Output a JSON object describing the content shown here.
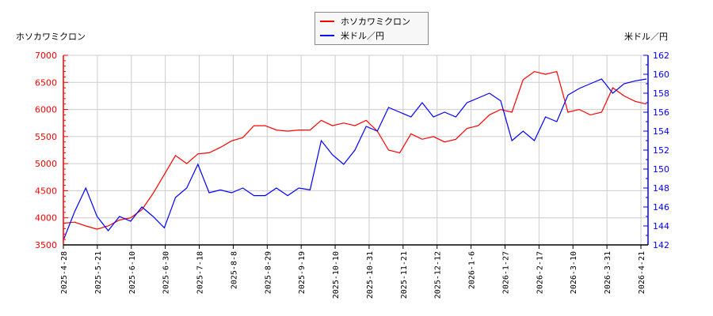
{
  "chart_data": {
    "type": "line",
    "title": "",
    "legend": {
      "position": "top-center",
      "entries": [
        {
          "label": "ホソカワミクロン",
          "color": "#ff0000"
        },
        {
          "label": "米ドル／円",
          "color": "#0000ff"
        }
      ]
    },
    "left_axis": {
      "label": "ホソカワミクロン",
      "color": "#ff0000",
      "ylim": [
        3500,
        7000
      ],
      "ticks": [
        "7000",
        "6500",
        "6000",
        "5500",
        "5000",
        "4500",
        "4000",
        "3500"
      ]
    },
    "right_axis": {
      "label": "米ドル／円",
      "color": "#0000ff",
      "ylim": [
        142,
        162
      ],
      "ticks": [
        "162",
        "160",
        "158",
        "156",
        "154",
        "152",
        "150",
        "148",
        "146",
        "144",
        "142"
      ]
    },
    "x_tick_labels": [
      "2025-4-28",
      "2025-5-21",
      "2025-6-10",
      "2025-6-30",
      "2025-7-18",
      "2025-8-8",
      "2025-8-29",
      "2025-9-19",
      "2025-10-10",
      "2025-10-31",
      "2025-11-21",
      "2025-12-12",
      "2026-1-6",
      "2026-1-27",
      "2026-2-17",
      "2026-3-10",
      "2026-3-31",
      "2026-4-21"
    ],
    "grid": true,
    "series": [
      {
        "name": "ホソカワミクロン",
        "axis": "left",
        "color": "#ff0000",
        "x": [
          "2025-4-28",
          "2025-5-7",
          "2025-5-14",
          "2025-5-21",
          "2025-5-28",
          "2025-6-3",
          "2025-6-10",
          "2025-6-17",
          "2025-6-24",
          "2025-6-30",
          "2025-7-4",
          "2025-7-11",
          "2025-7-18",
          "2025-7-25",
          "2025-8-1",
          "2025-8-8",
          "2025-8-15",
          "2025-8-22",
          "2025-8-29",
          "2025-9-5",
          "2025-9-12",
          "2025-9-19",
          "2025-9-26",
          "2025-10-3",
          "2025-10-10",
          "2025-10-17",
          "2025-10-24",
          "2025-10-31",
          "2025-11-7",
          "2025-11-14",
          "2025-11-21",
          "2025-11-28",
          "2025-12-5",
          "2025-12-12",
          "2025-12-19",
          "2025-12-26",
          "2026-1-6",
          "2026-1-13",
          "2026-1-20",
          "2026-1-27",
          "2026-2-3",
          "2026-2-10",
          "2026-2-17",
          "2026-2-24",
          "2026-3-3",
          "2026-3-10",
          "2026-3-17",
          "2026-3-24",
          "2026-3-31",
          "2026-4-7",
          "2026-4-14",
          "2026-4-21",
          "2026-4-24"
        ],
        "values": [
          3900,
          3920,
          3850,
          3790,
          3850,
          3960,
          4000,
          4150,
          4450,
          4800,
          5150,
          5000,
          5180,
          5200,
          5300,
          5420,
          5480,
          5700,
          5700,
          5620,
          5600,
          5620,
          5620,
          5800,
          5700,
          5750,
          5700,
          5800,
          5600,
          5250,
          5200,
          5550,
          5450,
          5500,
          5400,
          5450,
          5650,
          5700,
          5900,
          6000,
          5950,
          6550,
          6700,
          6650,
          6700,
          5950,
          6000,
          5900,
          5950,
          6400,
          6250,
          6150,
          6100
        ]
      },
      {
        "name": "米ドル／円",
        "axis": "right",
        "color": "#0000ff",
        "x": [
          "2025-4-28",
          "2025-5-7",
          "2025-5-14",
          "2025-5-21",
          "2025-5-28",
          "2025-6-3",
          "2025-6-10",
          "2025-6-17",
          "2025-6-24",
          "2025-6-30",
          "2025-7-4",
          "2025-7-11",
          "2025-7-18",
          "2025-7-25",
          "2025-8-1",
          "2025-8-8",
          "2025-8-15",
          "2025-8-22",
          "2025-8-29",
          "2025-9-5",
          "2025-9-12",
          "2025-9-19",
          "2025-9-26",
          "2025-10-3",
          "2025-10-10",
          "2025-10-17",
          "2025-10-24",
          "2025-10-31",
          "2025-11-7",
          "2025-11-14",
          "2025-11-21",
          "2025-11-28",
          "2025-12-5",
          "2025-12-12",
          "2025-12-19",
          "2025-12-26",
          "2026-1-6",
          "2026-1-13",
          "2026-1-20",
          "2026-1-27",
          "2026-2-3",
          "2026-2-10",
          "2026-2-17",
          "2026-2-24",
          "2026-3-3",
          "2026-3-10",
          "2026-3-17",
          "2026-3-24",
          "2026-3-31",
          "2026-4-7",
          "2026-4-14",
          "2026-4-21",
          "2026-4-24"
        ],
        "values": [
          142.5,
          145.5,
          148.0,
          145.0,
          143.5,
          145.0,
          144.5,
          146.0,
          145.0,
          143.8,
          147.0,
          148.0,
          150.5,
          147.5,
          147.8,
          147.5,
          148.0,
          147.2,
          147.2,
          148.0,
          147.2,
          148.0,
          147.8,
          153.0,
          151.5,
          150.5,
          152.0,
          154.5,
          154.0,
          156.5,
          156.0,
          155.5,
          157.0,
          155.5,
          156.0,
          155.5,
          157.0,
          157.5,
          158.0,
          157.2,
          153.0,
          154.0,
          153.0,
          155.5,
          155.0,
          157.8,
          158.5,
          159.0,
          159.5,
          158.0,
          159.0,
          159.3,
          159.5
        ]
      }
    ]
  }
}
